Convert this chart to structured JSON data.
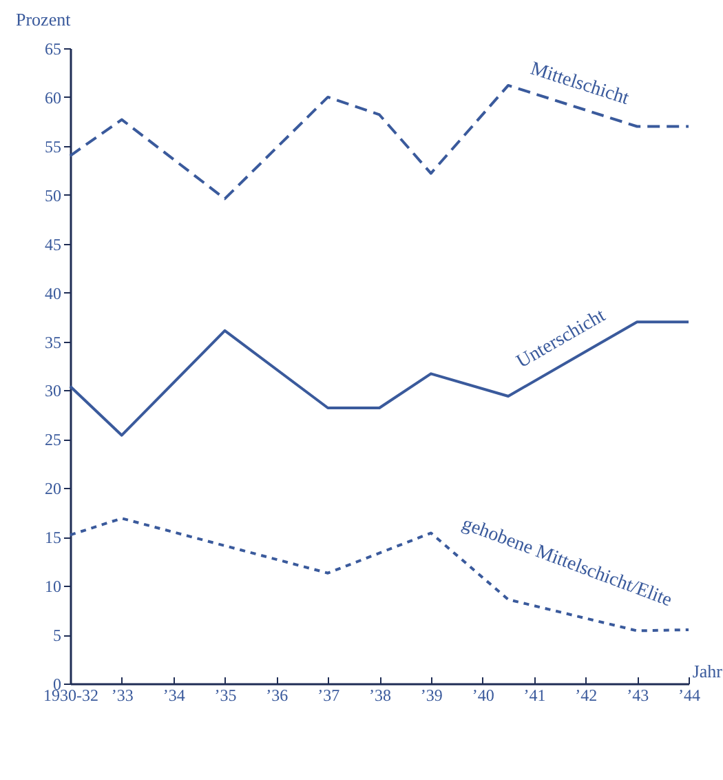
{
  "chart_data": {
    "type": "line",
    "xlabel": "Jahr",
    "ylabel": "Prozent",
    "xlim": [
      1932,
      1944
    ],
    "ylim": [
      0,
      65
    ],
    "xticks": [
      {
        "value": 1932,
        "label": "1930-32"
      },
      {
        "value": 1933,
        "label": "’33"
      },
      {
        "value": 1934,
        "label": "’34"
      },
      {
        "value": 1935,
        "label": "’35"
      },
      {
        "value": 1936,
        "label": "’36"
      },
      {
        "value": 1937,
        "label": "’37"
      },
      {
        "value": 1938,
        "label": "’38"
      },
      {
        "value": 1939,
        "label": "’39"
      },
      {
        "value": 1940,
        "label": "’40"
      },
      {
        "value": 1941,
        "label": "’41"
      },
      {
        "value": 1942,
        "label": "’42"
      },
      {
        "value": 1943,
        "label": "’43"
      },
      {
        "value": 1944,
        "label": "’44"
      }
    ],
    "yticks": [
      0,
      5,
      10,
      15,
      20,
      25,
      30,
      35,
      40,
      45,
      50,
      55,
      60,
      65
    ],
    "x": [
      1932,
      1933,
      1935,
      1937,
      1938,
      1939,
      1940.5,
      1943,
      1944
    ],
    "grid": false,
    "marker": "none",
    "series": [
      {
        "name": "Mittelschicht",
        "color": "#3a5a9c",
        "line_style": "dashed",
        "values": [
          54,
          57.7,
          49.6,
          60,
          58.2,
          52.2,
          61.2,
          57,
          57
        ]
      },
      {
        "name": "Unterschicht",
        "color": "#3a5a9c",
        "line_style": "solid",
        "values": [
          30.4,
          25.4,
          36.1,
          28.2,
          28.2,
          31.7,
          29.4,
          37,
          37
        ]
      },
      {
        "name": "gehobene Mittelschicht/Elite",
        "color": "#3a5a9c",
        "line_style": "dotted",
        "values": [
          15.2,
          16.9,
          null,
          11.3,
          null,
          15.4,
          8.6,
          5.4,
          5.5
        ]
      }
    ]
  }
}
